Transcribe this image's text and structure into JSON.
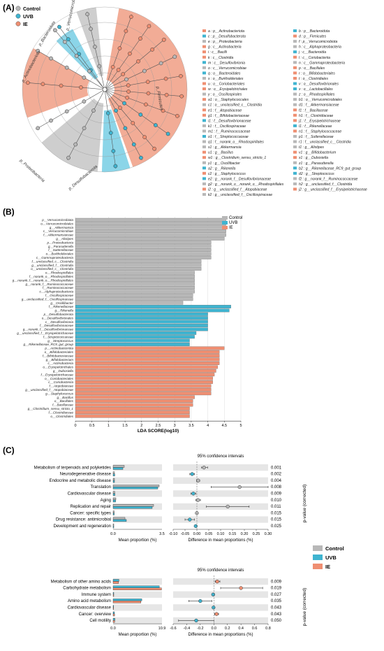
{
  "panels": {
    "a_label": "(A)",
    "b_label": "(B)",
    "c_label": "(C)"
  },
  "groups": [
    {
      "name": "Control",
      "color": "#b8b8b8"
    },
    {
      "name": "UVB",
      "color": "#3fb4d0"
    },
    {
      "name": "IE",
      "color": "#ef8f72"
    }
  ],
  "cladogram": {
    "colors": {
      "Control": "#c9c9c9",
      "UVB": "#7ed0e6",
      "IE": "#f1a38b"
    },
    "branch_labels": [
      {
        "text": "p_Verrucomicrobiota",
        "group": "Control"
      },
      {
        "text": "p_Bacteroidota",
        "group": "UVB"
      },
      {
        "text": "p_Actinobacteriota",
        "group": "IE"
      },
      {
        "text": "p_Firmicutes",
        "group": "IE"
      },
      {
        "text": "p_Proteobacteria",
        "group": "Control"
      },
      {
        "text": "p_Desulfobacterota",
        "group": "UVB"
      }
    ]
  },
  "legend_a": [
    [
      "a : p__Actinobacteriota",
      "IE"
    ],
    [
      "b : p__Bacteroidota",
      "UVB"
    ],
    [
      "c : p__Desulfobacterota",
      "UVB"
    ],
    [
      "d : p__Firmicutes",
      "IE"
    ],
    [
      "e : p__Proteobacteria",
      "Control"
    ],
    [
      "f : p__Verrucomicrobiota",
      "Control"
    ],
    [
      "g : c__Actinobacteria",
      "IE"
    ],
    [
      "h : c__Alphaproteobacteria",
      "Control"
    ],
    [
      "i : c__Bacilli",
      "IE"
    ],
    [
      "j : c__Bacteroidia",
      "UVB"
    ],
    [
      "k : c__Clostridia",
      "IE"
    ],
    [
      "l : c__Coriobacteriia",
      "IE"
    ],
    [
      "m : c__Desulfovibrionia",
      "UVB"
    ],
    [
      "n : c__Gammaproteobacteria",
      "Control"
    ],
    [
      "o : c__Verrucomicrobiae",
      "Control"
    ],
    [
      "p : o__Bacillales",
      "IE"
    ],
    [
      "q : o__Bacteroidales",
      "UVB"
    ],
    [
      "r : o__Bifidobacteriales",
      "IE"
    ],
    [
      "s : o__Burkholderiales",
      "Control"
    ],
    [
      "t : o__Clostridiales",
      "IE"
    ],
    [
      "u : o__Coriobacteriales",
      "IE"
    ],
    [
      "v : o__Desulfovibrionales",
      "UVB"
    ],
    [
      "w : o__Erysipelotrichales",
      "IE"
    ],
    [
      "x : o__Lactobacillales",
      "UVB"
    ],
    [
      "y : o__Oscillospirales",
      "Control"
    ],
    [
      "z : o__Rhodospirillales",
      "Control"
    ],
    [
      "a1 : o__Staphylococcales",
      "IE"
    ],
    [
      "b1 : o__Verrucomicrobiales",
      "Control"
    ],
    [
      "c1 : o__unclassified_c__Clostridia",
      "Control"
    ],
    [
      "d1 : f__Akkermansiaceae",
      "Control"
    ],
    [
      "e1 : f__Atopobiaceae",
      "IE"
    ],
    [
      "f1 : f__Bacillaceae",
      "IE"
    ],
    [
      "g1 : f__Bifidobacteriaceae",
      "IE"
    ],
    [
      "h1 : f__Clostridiaceae",
      "IE"
    ],
    [
      "i1 : f__Desulfovibrionaceae",
      "UVB"
    ],
    [
      "j1 : f__Erysipelotrichaceae",
      "IE"
    ],
    [
      "k1 : f__Oscillospiraceae",
      "Control"
    ],
    [
      "l1 : f__Rikenellaceae",
      "UVB"
    ],
    [
      "m1 : f__Ruminococcaceae",
      "Control"
    ],
    [
      "n1 : f__Staphylococcaceae",
      "IE"
    ],
    [
      "o1 : f__Streptococcaceae",
      "UVB"
    ],
    [
      "p1 : f__Sutterellaceae",
      "Control"
    ],
    [
      "q1 : f__norank_o__Rhodospirillales",
      "Control"
    ],
    [
      "r1 : f__unclassified_c__Clostridia",
      "Control"
    ],
    [
      "s1 : g__Akkermansia",
      "Control"
    ],
    [
      "t1 : g__Alistipes",
      "Control"
    ],
    [
      "u1 : g__Bacillus",
      "IE"
    ],
    [
      "v1 : g__Bifidobacterium",
      "IE"
    ],
    [
      "w1 : g__Clostridium_sensu_stricto_1",
      "IE"
    ],
    [
      "x1 : g__Dubosiella",
      "IE"
    ],
    [
      "y1 : g__Oscillibacter",
      "Control"
    ],
    [
      "z1 : g__Parasutterella",
      "Control"
    ],
    [
      "a2 : g__Rikenella",
      "UVB"
    ],
    [
      "b2 : g__Rikenellaceae_RC9_gut_group",
      "UVB"
    ],
    [
      "c2 : g__Staphylococcus",
      "IE"
    ],
    [
      "d2 : g__Streptococcus",
      "UVB"
    ],
    [
      "e2 : g__norank_f__Desulfovibrionaceae",
      "UVB"
    ],
    [
      "f2 : g__norank_f__Ruminococcaceae",
      "Control"
    ],
    [
      "g2 : g__norank_o__norank_o__Rhodospirillales",
      "Control"
    ],
    [
      "h2 : g__unclassified_f__Clostridia",
      "Control"
    ],
    [
      "i2 : g__unclassified_f__Atopobiaceae",
      "IE"
    ],
    [
      "j2 : g__unclassified_f__Erysipelotrichaceae",
      "IE"
    ],
    [
      "k2 : g__unclassified_f__Oscillospiraceae",
      "Control"
    ]
  ],
  "chart_data": [
    {
      "type": "bar",
      "orientation": "horizontal",
      "xlabel": "LDA SCORE(log10)",
      "xlim": [
        0,
        5
      ],
      "xticks": [
        0,
        0.5,
        1,
        1.5,
        2,
        2.5,
        3,
        3.5,
        4,
        4.5,
        5
      ],
      "legend": [
        "Control",
        "UVB",
        "IE"
      ],
      "legend_position": "top-right",
      "bars": [
        [
          "p__Verrucomicrobiota",
          4.55,
          "Control"
        ],
        [
          "o__Verrucomicrobiales",
          4.55,
          "Control"
        ],
        [
          "g__Akkermansia",
          4.55,
          "Control"
        ],
        [
          "c__Verrucomicrobiae",
          4.55,
          "Control"
        ],
        [
          "f__Akkermansiaceae",
          4.55,
          "Control"
        ],
        [
          "g__Alistipes",
          4.5,
          "Control"
        ],
        [
          "p__Proteobacteria",
          4.1,
          "Control"
        ],
        [
          "g__Parasutterella",
          4.1,
          "Control"
        ],
        [
          "f__Sutterellaceae",
          4.1,
          "Control"
        ],
        [
          "o__Burkholderiales",
          4.1,
          "Control"
        ],
        [
          "c__Gammaproteobacteria",
          4.1,
          "Control"
        ],
        [
          "f__unclassified_c__Clostridia",
          3.8,
          "Control"
        ],
        [
          "g__unclassified_f__Clostridia",
          3.8,
          "Control"
        ],
        [
          "o__unclassified_c__Clostridia",
          3.8,
          "Control"
        ],
        [
          "o__Rhodospirillales",
          3.6,
          "Control"
        ],
        [
          "f__norank_o__Rhodospirillales",
          3.6,
          "Control"
        ],
        [
          "g__norank_f__norank_o__Rhodospirillales",
          3.6,
          "Control"
        ],
        [
          "g__norank_f__Ruminococcaceae",
          3.6,
          "Control"
        ],
        [
          "f__Ruminococcaceae",
          3.6,
          "Control"
        ],
        [
          "c__Alphaproteobacteria",
          3.6,
          "Control"
        ],
        [
          "f__Oscillospiraceae",
          3.55,
          "Control"
        ],
        [
          "g__unclassified_f__Oscillospiraceae",
          3.55,
          "Control"
        ],
        [
          "g__Oscillibacter",
          3.25,
          "Control"
        ],
        [
          "f__Rikenellaceae",
          4.7,
          "UVB"
        ],
        [
          "g__Rikenella",
          4.65,
          "UVB"
        ],
        [
          "p__Desulfobacterota",
          4.0,
          "UVB"
        ],
        [
          "o__Desulfovibrionales",
          4.0,
          "UVB"
        ],
        [
          "c__Desulfovibrionia",
          4.0,
          "UVB"
        ],
        [
          "f__Desulfovibrionaceae",
          4.0,
          "UVB"
        ],
        [
          "g__norank_f__Desulfovibrionaceae",
          4.0,
          "UVB"
        ],
        [
          "g__unclassified_f__Erysipelotrichaceae",
          3.65,
          "UVB"
        ],
        [
          "f__Streptococcaceae",
          3.6,
          "UVB"
        ],
        [
          "g__Streptococcus",
          3.45,
          "UVB"
        ],
        [
          "g__Rikenellaceae_RC9_gut_group",
          3.45,
          "UVB"
        ],
        [
          "p__Actinobacteriota",
          4.5,
          "IE"
        ],
        [
          "o__Bifidobacteriales",
          4.35,
          "IE"
        ],
        [
          "f__Bifidobacteriaceae",
          4.35,
          "IE"
        ],
        [
          "g__Bifidobacterium",
          4.35,
          "IE"
        ],
        [
          "c__Actinobacteria",
          4.35,
          "IE"
        ],
        [
          "o__Erysipelotrichales",
          4.3,
          "IE"
        ],
        [
          "g__Dubosiella",
          4.25,
          "IE"
        ],
        [
          "f__Erysipelotrichaceae",
          4.2,
          "IE"
        ],
        [
          "o__Coriobacteriales",
          4.15,
          "IE"
        ],
        [
          "c__Coriobacteriia",
          4.15,
          "IE"
        ],
        [
          "f__Atopobiaceae",
          4.1,
          "IE"
        ],
        [
          "g__unclassified_f__Atopobiaceae",
          4.1,
          "IE"
        ],
        [
          "g__Staphylococcus",
          4.1,
          "IE"
        ],
        [
          "g__Bacillus",
          3.6,
          "IE"
        ],
        [
          "o__Bacillales",
          3.55,
          "IE"
        ],
        [
          "f__Bacillaceae",
          3.55,
          "IE"
        ],
        [
          "g__Clostridium_sensu_stricto_1",
          3.45,
          "IE"
        ],
        [
          "f__Clostridiaceae",
          3.45,
          "IE"
        ],
        [
          "o__Clostridiales",
          3.45,
          "IE"
        ]
      ]
    },
    {
      "type": "bar-errorbar",
      "title": "95% confidence intervals",
      "comparison": [
        "Control",
        "UVB"
      ],
      "xlabel_left": "Mean proportion (%)",
      "xlabel_right": "Difference in mean proportions (%)",
      "ylabel_right": "p-value (corrected)",
      "left_xlim": [
        0,
        3.5
      ],
      "left_xticks": [
        0,
        3.5
      ],
      "right_xlim": [
        -0.1,
        0.3
      ],
      "right_xticks": [
        -0.1,
        -0.05,
        0,
        0.05,
        0.1,
        0.15,
        0.2,
        0.25,
        0.3
      ],
      "right_xtick_labels": [
        "-0.10",
        "-0.05",
        "0.00",
        "0.05",
        "0.10",
        "0.15",
        "0.20",
        "0.25",
        "0.30"
      ],
      "rows": [
        {
          "label": "Metabolism of terpenoids and polyketides",
          "a": 0.8,
          "b": 0.7,
          "diff": 0.03,
          "lo": 0.02,
          "hi": 0.045,
          "p": "0.001"
        },
        {
          "label": "Neurodegenerative disease",
          "a": 0.1,
          "b": 0.12,
          "diff": -0.02,
          "lo": -0.03,
          "hi": -0.01,
          "p": "0.002"
        },
        {
          "label": "Endocrine and metabolic disease",
          "a": 0.1,
          "b": 0.1,
          "diff": 0.005,
          "lo": -0.002,
          "hi": 0.012,
          "p": "0.004"
        },
        {
          "label": "Translation",
          "a": 3.3,
          "b": 3.2,
          "diff": 0.18,
          "lo": 0.06,
          "hi": 0.3,
          "p": "0.008"
        },
        {
          "label": "Cardiovascular disease",
          "a": 0.12,
          "b": 0.13,
          "diff": -0.015,
          "lo": -0.025,
          "hi": -0.005,
          "p": "0.009"
        },
        {
          "label": "Aging",
          "a": 0.2,
          "b": 0.18,
          "diff": 0.005,
          "lo": -0.005,
          "hi": 0.015,
          "p": "0.010"
        },
        {
          "label": "Replication and repair",
          "a": 2.9,
          "b": 2.8,
          "diff": 0.13,
          "lo": 0.04,
          "hi": 0.22,
          "p": "0.011"
        },
        {
          "label": "Cancer: specific types",
          "a": 0.08,
          "b": 0.08,
          "diff": 0.0,
          "lo": -0.003,
          "hi": 0.003,
          "p": "0.015"
        },
        {
          "label": "Drug resistance: antimicrobial",
          "a": 0.85,
          "b": 0.95,
          "diff": -0.03,
          "lo": -0.05,
          "hi": -0.01,
          "p": "0.015"
        },
        {
          "label": "Development and regeneration",
          "a": 0.05,
          "b": 0.05,
          "diff": -0.005,
          "lo": -0.008,
          "hi": -0.002,
          "p": "0.025"
        }
      ]
    },
    {
      "type": "bar-errorbar",
      "title": "95% confidence intervals",
      "comparison": [
        "UVB",
        "IE"
      ],
      "xlabel_left": "Mean proportion (%)",
      "xlabel_right": "Difference in mean proportions (%)",
      "left_xlim": [
        0,
        10.9
      ],
      "left_xticks": [
        0,
        10.9
      ],
      "right_xlim": [
        -0.6,
        0.8
      ],
      "right_xticks": [
        -0.6,
        -0.4,
        -0.2,
        0,
        0.2,
        0.4,
        0.6,
        0.8
      ],
      "right_xtick_labels": [
        "-0.6",
        "-0.4",
        "-0.2",
        "0.0",
        "0.2",
        "0.4",
        "0.6",
        "0.8"
      ],
      "rows": [
        {
          "label": "Metabolism of other amino acids",
          "a": 1.3,
          "b": 1.2,
          "diff": 0.05,
          "lo": 0.02,
          "hi": 0.09,
          "p": "0.009"
        },
        {
          "label": "Carbohydrate metabolism",
          "a": 10.3,
          "b": 10.8,
          "diff": 0.4,
          "lo": 0.1,
          "hi": 0.72,
          "p": "0.019"
        },
        {
          "label": "Immune system",
          "a": 0.15,
          "b": 0.15,
          "diff": -0.01,
          "lo": -0.03,
          "hi": 0.01,
          "p": "0.027"
        },
        {
          "label": "Amino acid metabolism",
          "a": 6.4,
          "b": 6.2,
          "diff": -0.2,
          "lo": -0.37,
          "hi": -0.03,
          "p": "0.035"
        },
        {
          "label": "Cardiovascular disease",
          "a": 0.12,
          "b": 0.11,
          "diff": -0.005,
          "lo": -0.02,
          "hi": 0.01,
          "p": "0.043"
        },
        {
          "label": "Cancer: overview",
          "a": 0.3,
          "b": 0.33,
          "diff": 0.04,
          "lo": 0.01,
          "hi": 0.07,
          "p": "0.043"
        },
        {
          "label": "Cell motility",
          "a": 0.4,
          "b": 0.35,
          "diff": -0.26,
          "lo": -0.52,
          "hi": 0.0,
          "p": "0.050"
        }
      ]
    }
  ]
}
